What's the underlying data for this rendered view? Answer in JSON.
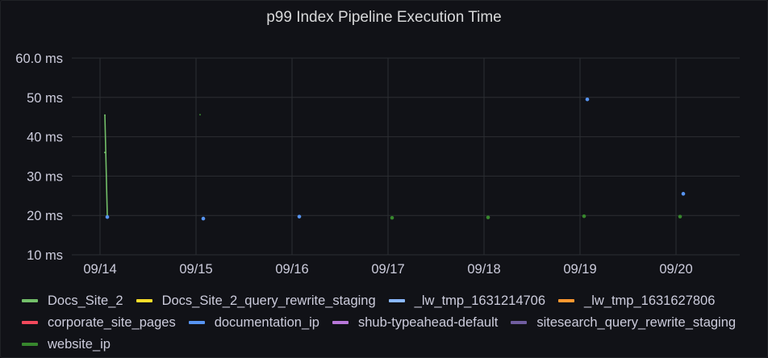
{
  "panel": {
    "title": "p99 Index Pipeline Execution Time"
  },
  "chart_data": {
    "type": "line",
    "title": "p99 Index Pipeline Execution Time",
    "xlabel": "",
    "ylabel": "",
    "x_ticks": [
      "09/14",
      "09/15",
      "09/16",
      "09/17",
      "09/18",
      "09/19",
      "09/20"
    ],
    "y_ticks": [
      "10 ms",
      "20 ms",
      "30 ms",
      "40 ms",
      "50 ms",
      "60.0 ms"
    ],
    "ylim": [
      10,
      60
    ],
    "y_unit": "ms",
    "grid": true,
    "legend_position": "bottom",
    "series": [
      {
        "name": "Docs_Site_2",
        "color": "#73bf69",
        "points": [
          {
            "x": "09/14",
            "y": 45.5
          },
          {
            "x": "09/14",
            "y": 36
          },
          {
            "x": "09/14",
            "y": 20
          }
        ]
      },
      {
        "name": "Docs_Site_2_query_rewrite_staging",
        "color": "#fade2a",
        "points": []
      },
      {
        "name": "_lw_tmp_1631214706",
        "color": "#8ab8ff",
        "points": []
      },
      {
        "name": "_lw_tmp_1631627806",
        "color": "#ff9830",
        "points": []
      },
      {
        "name": "corporate_site_pages",
        "color": "#f2495c",
        "points": []
      },
      {
        "name": "documentation_ip",
        "color": "#5794f2",
        "points": [
          {
            "x": "09/14",
            "y": 19.6
          },
          {
            "x": "09/15",
            "y": 19.2
          },
          {
            "x": "09/16",
            "y": 19.7
          },
          {
            "x": "09/19",
            "y": 49.5
          },
          {
            "x": "09/20",
            "y": 25.5
          }
        ]
      },
      {
        "name": "shub-typeahead-default",
        "color": "#b877d9",
        "points": []
      },
      {
        "name": "sitesearch_query_rewrite_staging",
        "color": "#705da0",
        "points": []
      },
      {
        "name": "website_ip",
        "color": "#37872d",
        "points": [
          {
            "x": "09/15",
            "y": 45.6
          },
          {
            "x": "09/17",
            "y": 19.4
          },
          {
            "x": "09/18",
            "y": 19.5
          },
          {
            "x": "09/19",
            "y": 19.8
          },
          {
            "x": "09/20",
            "y": 19.7
          }
        ]
      }
    ]
  }
}
